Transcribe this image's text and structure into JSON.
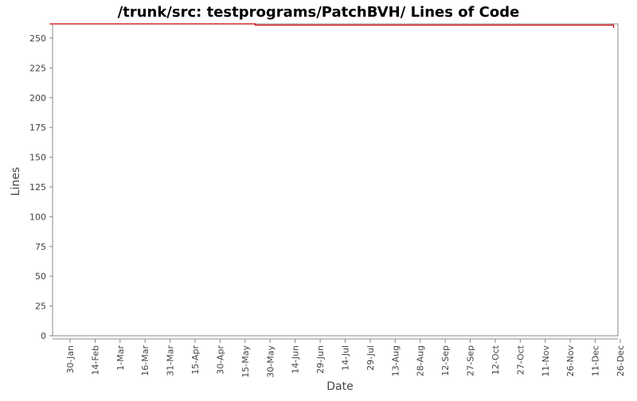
{
  "chart_data": {
    "type": "line",
    "title": "/trunk/src: testprograms/PatchBVH/ Lines of Code",
    "xlabel": "Date",
    "ylabel": "Lines",
    "ylim": [
      0,
      262
    ],
    "yticks": [
      0,
      25,
      50,
      75,
      100,
      125,
      150,
      175,
      200,
      225,
      250
    ],
    "xticks": [
      "30-Jan",
      "14-Feb",
      "1-Mar",
      "16-Mar",
      "31-Mar",
      "15-Apr",
      "30-Apr",
      "15-May",
      "30-May",
      "14-Jun",
      "29-Jun",
      "14-Jul",
      "29-Jul",
      "13-Aug",
      "28-Aug",
      "12-Sep",
      "27-Sep",
      "12-Oct",
      "27-Oct",
      "11-Nov",
      "26-Nov",
      "11-Dec",
      "26-Dec"
    ],
    "grid": false,
    "series": [
      {
        "color": "#cc0000",
        "points": [
          {
            "x": "18-Jan",
            "y": 262
          },
          {
            "x": "21-May",
            "y": 262
          },
          {
            "x": "21-May",
            "y": 261
          },
          {
            "x": "22-Dec",
            "y": 261
          },
          {
            "x": "22-Dec",
            "y": 259
          }
        ]
      }
    ]
  }
}
